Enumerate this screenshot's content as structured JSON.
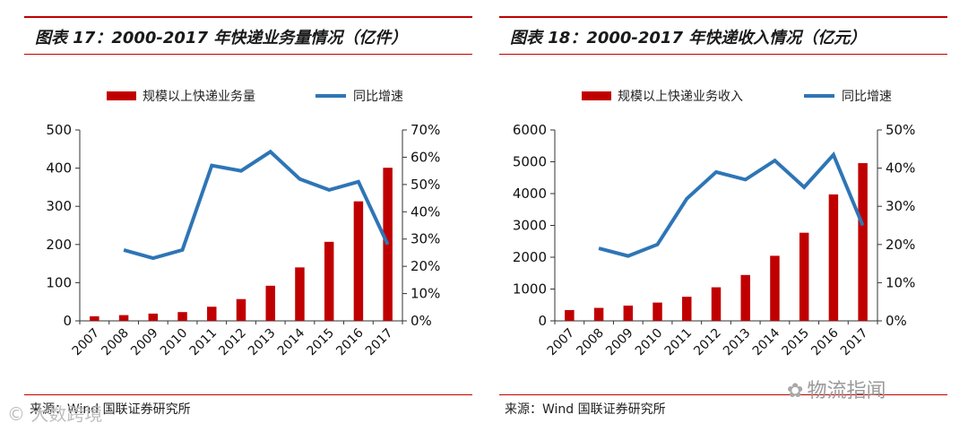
{
  "colors": {
    "bar": "#c00000",
    "line": "#2e75b6",
    "rule": "#c00000"
  },
  "chart_data": [
    {
      "type": "bar+line",
      "title": "图表 17：2000-2017 年快递业务量情况（亿件）",
      "categories": [
        "2007",
        "2008",
        "2009",
        "2010",
        "2011",
        "2012",
        "2013",
        "2014",
        "2015",
        "2016",
        "2017"
      ],
      "series": [
        {
          "name": "规模以上快递业务量",
          "type": "bar",
          "axis": "left",
          "values": [
            12,
            15,
            19,
            23,
            37,
            57,
            92,
            140,
            207,
            313,
            401
          ]
        },
        {
          "name": "同比增速",
          "type": "line",
          "axis": "right",
          "values": [
            null,
            0.26,
            0.23,
            0.26,
            0.57,
            0.55,
            0.62,
            0.52,
            0.48,
            0.51,
            0.28
          ]
        }
      ],
      "ylim_left": [
        0,
        500
      ],
      "yticks_left": [
        "0",
        "100",
        "200",
        "300",
        "400",
        "500"
      ],
      "ylim_right": [
        0,
        0.7
      ],
      "yticks_right": [
        "0%",
        "10%",
        "20%",
        "30%",
        "40%",
        "50%",
        "60%",
        "70%"
      ],
      "legend": "top",
      "source": "来源：Wind  国联证券研究所"
    },
    {
      "type": "bar+line",
      "title": "图表 18：2000-2017 年快递收入情况（亿元）",
      "categories": [
        "2007",
        "2008",
        "2009",
        "2010",
        "2011",
        "2012",
        "2013",
        "2014",
        "2015",
        "2016",
        "2017"
      ],
      "series": [
        {
          "name": "规模以上快递业务收入",
          "type": "bar",
          "axis": "left",
          "values": [
            340,
            408,
            480,
            575,
            758,
            1055,
            1442,
            2045,
            2770,
            3974,
            4957
          ]
        },
        {
          "name": "同比增速",
          "type": "line",
          "axis": "right",
          "values": [
            null,
            0.19,
            0.17,
            0.2,
            0.32,
            0.39,
            0.37,
            0.42,
            0.35,
            0.435,
            0.25
          ]
        }
      ],
      "ylim_left": [
        0,
        6000
      ],
      "yticks_left": [
        "0",
        "1000",
        "2000",
        "3000",
        "4000",
        "5000",
        "6000"
      ],
      "ylim_right": [
        0,
        0.5
      ],
      "yticks_right": [
        "0%",
        "10%",
        "20%",
        "30%",
        "40%",
        "50%"
      ],
      "legend": "top",
      "source": "来源：Wind  国联证券研究所"
    }
  ],
  "watermark": {
    "left": "© 大数跨境",
    "wechat_icon": "wechat-icon",
    "right": "物流指闻"
  }
}
